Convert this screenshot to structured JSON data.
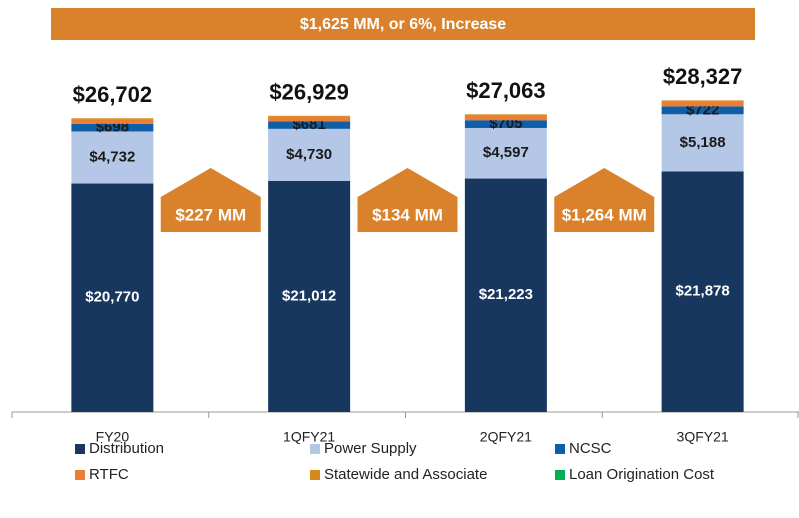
{
  "chart_data": {
    "type": "stacked_bar",
    "title": "$1,625 MM, or 6%, Increase",
    "categories": [
      "FY20",
      "1QFY21",
      "2QFY21",
      "3QFY21"
    ],
    "series": [
      {
        "name": "Distribution",
        "color": "#17375e",
        "values": [
          20770,
          21012,
          21223,
          21878
        ],
        "value_labels": [
          "$20,770",
          "$21,012",
          "$21,223",
          "$21,878"
        ]
      },
      {
        "name": "Power Supply",
        "color": "#b4c7e7",
        "values": [
          4732,
          4730,
          4597,
          5188
        ],
        "value_labels": [
          "$4,732",
          "$4,730",
          "$4,597",
          "$5,188"
        ]
      },
      {
        "name": "NCSC",
        "color": "#0f5fa8",
        "values": [
          698,
          681,
          705,
          722
        ],
        "value_labels": [
          "$698",
          "$681",
          "$705",
          "$722"
        ]
      },
      {
        "name": "RTFC",
        "color": "#ed7d31",
        "values": [
          400,
          405,
          435,
          436
        ]
      },
      {
        "name": "Statewide and Associate",
        "color": "#d58a1e",
        "values": [
          100,
          99,
          101,
          101
        ]
      },
      {
        "name": "Loan Origination Cost",
        "color": "#00b050",
        "values": [
          2,
          2,
          2,
          2
        ]
      }
    ],
    "totals": [
      26702,
      26929,
      27063,
      28327
    ],
    "total_labels": [
      "$26,702",
      "$26,929",
      "$27,063",
      "$28,327"
    ],
    "increments": [
      {
        "value": 227,
        "label": "$227 MM"
      },
      {
        "value": 134,
        "label": "$134 MM"
      },
      {
        "value": 1264,
        "label": "$1,264 MM"
      }
    ],
    "ylim": [
      0,
      30000
    ]
  }
}
